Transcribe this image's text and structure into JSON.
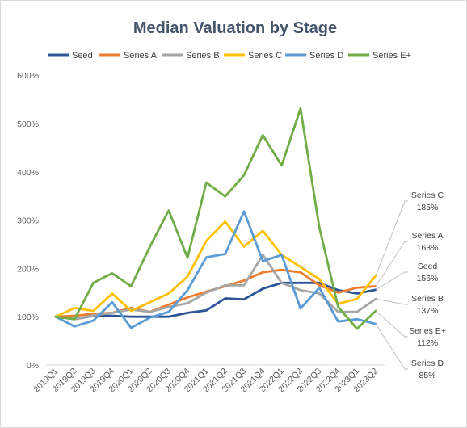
{
  "chart_data": {
    "type": "line",
    "title": "Median Valuation by Stage",
    "xlabel": "",
    "ylabel": "",
    "categories": [
      "2019Q1",
      "2019Q2",
      "2019Q3",
      "2019Q4",
      "2020Q1",
      "2020Q2",
      "2020Q3",
      "2020Q4",
      "2021Q1",
      "2021Q2",
      "2021Q3",
      "2021Q4",
      "2022Q1",
      "2022Q2",
      "2022Q3",
      "2022Q4",
      "2023Q1",
      "2023Q2"
    ],
    "yticks": [
      "0%",
      "100%",
      "200%",
      "300%",
      "400%",
      "500%",
      "600%"
    ],
    "ylim": [
      0,
      600
    ],
    "grid": false,
    "legend_position": "top",
    "series": [
      {
        "name": "Seed",
        "color": "#2e5597",
        "values": [
          100,
          95,
          102,
          102,
          100,
          100,
          100,
          108,
          113,
          138,
          136,
          158,
          170,
          170,
          170,
          155,
          148,
          156
        ],
        "end_label": "Seed",
        "end_value": "156%"
      },
      {
        "name": "Series A",
        "color": "#ed7d31",
        "values": [
          100,
          102,
          106,
          108,
          118,
          110,
          125,
          140,
          152,
          163,
          175,
          192,
          197,
          192,
          165,
          150,
          160,
          163
        ],
        "end_label": "Series A",
        "end_value": "163%"
      },
      {
        "name": "Series B",
        "color": "#a5a5a5",
        "values": [
          100,
          95,
          103,
          108,
          115,
          110,
          120,
          128,
          150,
          165,
          165,
          228,
          170,
          155,
          148,
          110,
          110,
          137
        ],
        "end_label": "Series B",
        "end_value": "137%"
      },
      {
        "name": "Series C",
        "color": "#ffc000",
        "values": [
          100,
          118,
          112,
          148,
          112,
          130,
          148,
          183,
          257,
          297,
          245,
          278,
          228,
          203,
          178,
          127,
          137,
          185
        ],
        "end_label": "Series C",
        "end_value": "185%"
      },
      {
        "name": "Series D",
        "color": "#5b9bd5",
        "values": [
          100,
          80,
          92,
          130,
          77,
          98,
          110,
          155,
          223,
          230,
          318,
          215,
          228,
          117,
          160,
          90,
          95,
          85
        ],
        "end_label": "Series D",
        "end_value": "85%"
      },
      {
        "name": "Series E+",
        "color": "#70ad47",
        "values": [
          100,
          95,
          170,
          190,
          163,
          245,
          320,
          222,
          378,
          349,
          393,
          476,
          413,
          531,
          285,
          120,
          75,
          112
        ],
        "end_label": "Series E+",
        "end_value": "112%"
      }
    ]
  }
}
